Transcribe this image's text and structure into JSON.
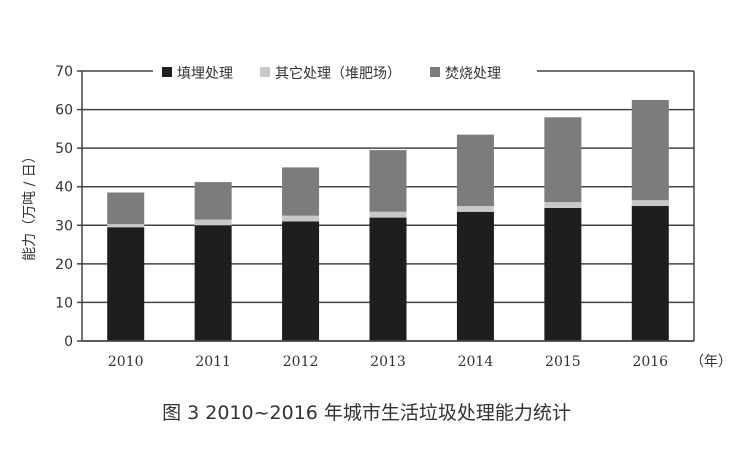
{
  "caption": "图 3 2010~2016 年城市生活垃圾处理能力统计",
  "colors": {
    "landfill": "#1e1e1e",
    "other": "#c8c8c8",
    "incineration": "#7c7c7c",
    "axis": "#444444",
    "text": "#333333"
  },
  "chart_data": {
    "type": "bar",
    "stacked": true,
    "categories": [
      "2010",
      "2011",
      "2012",
      "2013",
      "2014",
      "2015",
      "2016"
    ],
    "series": [
      {
        "name": "填埋处理",
        "color": "#1e1e1e",
        "values": [
          29.5,
          30.0,
          31.0,
          32.0,
          33.5,
          34.5,
          35.0
        ]
      },
      {
        "name": "其它处理（堆肥场）",
        "color": "#c8c8c8",
        "values": [
          0.8,
          1.5,
          1.5,
          1.5,
          1.5,
          1.5,
          1.5
        ]
      },
      {
        "name": "焚烧处理",
        "color": "#7c7c7c",
        "values": [
          8.2,
          9.7,
          12.5,
          16.0,
          18.5,
          22.0,
          26.0
        ]
      }
    ],
    "xlabel": "（年）",
    "ylabel": "能力（万吨 / 日）",
    "ylim": [
      0,
      70
    ],
    "yticks": [
      0,
      10,
      20,
      30,
      40,
      50,
      60,
      70
    ],
    "grid": true,
    "legend_position": "top"
  }
}
